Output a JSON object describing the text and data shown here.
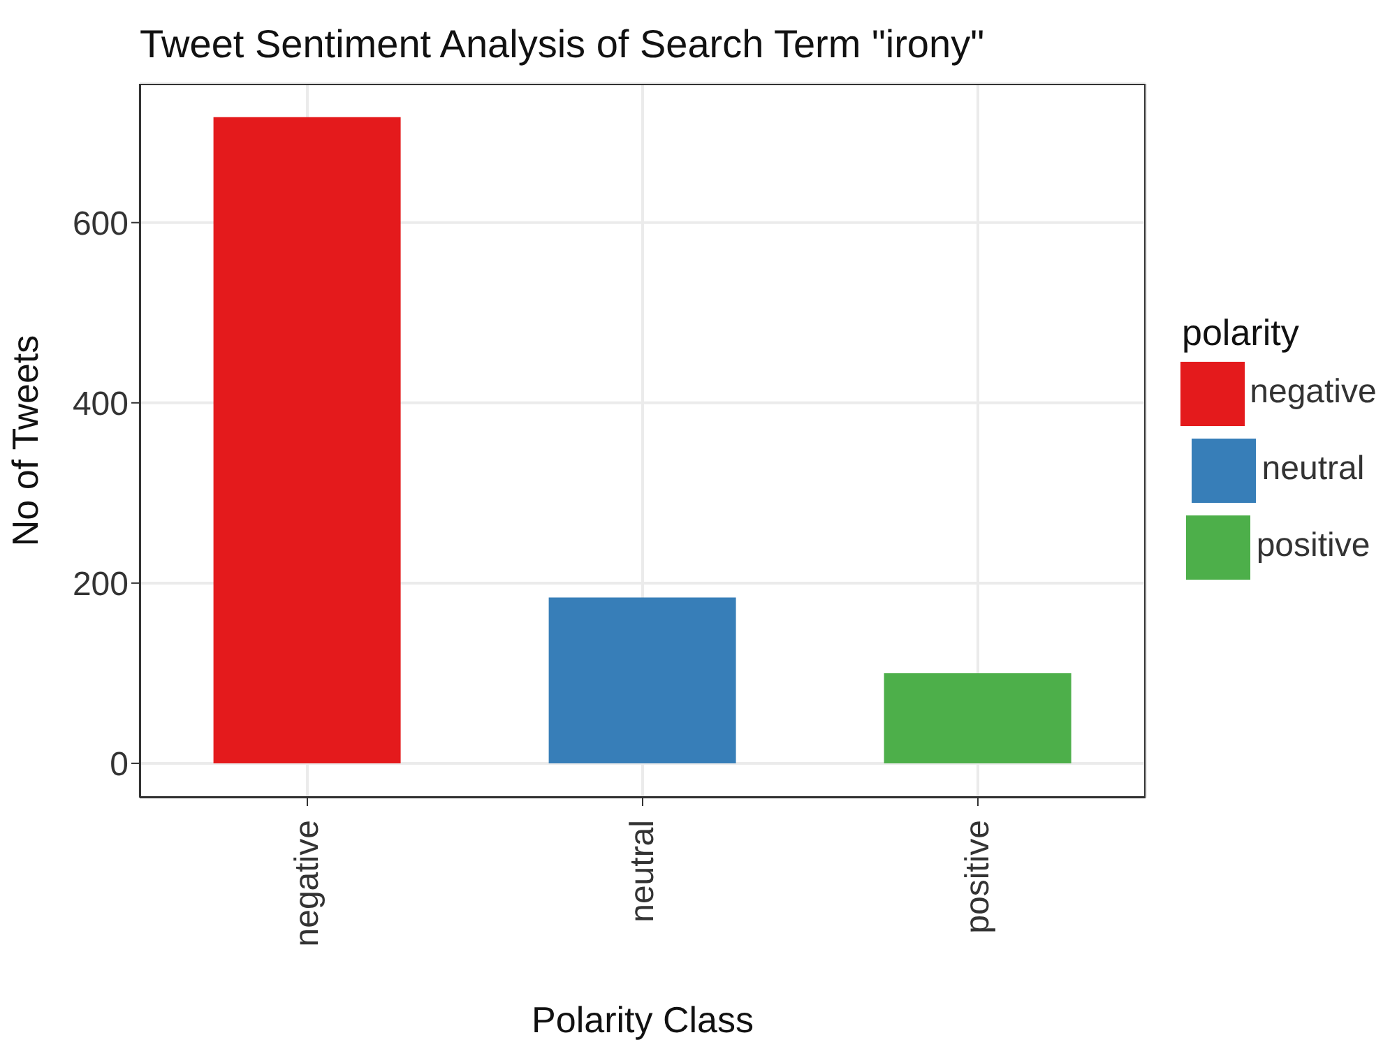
{
  "chart_data": {
    "type": "bar",
    "title": "Tweet Sentiment Analysis of Search Term \"irony\"",
    "xlabel": "Polarity Class",
    "ylabel": "No of Tweets",
    "legend_title": "polarity",
    "categories": [
      "negative",
      "neutral",
      "positive"
    ],
    "series": [
      {
        "name": "negative",
        "color": "#e41a1c",
        "values": [
          717,
          null,
          null
        ]
      },
      {
        "name": "neutral",
        "color": "#377eb8",
        "values": [
          null,
          184,
          null
        ]
      },
      {
        "name": "positive",
        "color": "#4daf4a",
        "values": [
          null,
          null,
          100
        ]
      }
    ],
    "ylim": [
      -38,
      754
    ],
    "yticks": [
      0,
      200,
      400,
      600
    ],
    "grid": true,
    "legend": "right"
  }
}
